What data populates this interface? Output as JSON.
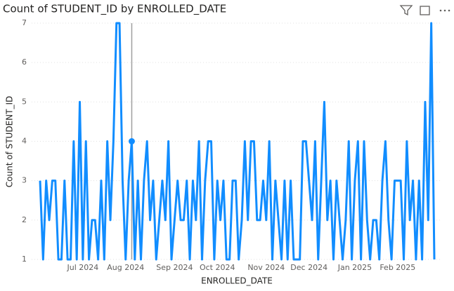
{
  "chart_data": {
    "type": "line",
    "title": "Count of STUDENT_ID by ENROLLED_DATE",
    "x_label": "ENROLLED_DATE",
    "y_label": "Count of STUDENT_ID",
    "categories": [
      null,
      null,
      null,
      null,
      null,
      null,
      null,
      null,
      null,
      null,
      null,
      null,
      null,
      null,
      "Jul 2024",
      null,
      null,
      null,
      null,
      null,
      null,
      null,
      null,
      null,
      null,
      null,
      null,
      null,
      "Aug 2024",
      null,
      null,
      null,
      null,
      null,
      null,
      null,
      null,
      null,
      null,
      null,
      null,
      null,
      null,
      null,
      "Sep 2024",
      null,
      null,
      null,
      null,
      null,
      null,
      null,
      null,
      null,
      null,
      null,
      null,
      null,
      "Oct 2024",
      null,
      null,
      null,
      null,
      null,
      null,
      null,
      null,
      null,
      null,
      null,
      null,
      null,
      null,
      null,
      "Nov 2024",
      null,
      null,
      null,
      null,
      null,
      null,
      null,
      null,
      null,
      null,
      null,
      null,
      null,
      "Dec 2024",
      null,
      null,
      null,
      null,
      null,
      null,
      null,
      null,
      null,
      null,
      null,
      null,
      null,
      null,
      "Jan 2025",
      null,
      null,
      null,
      null,
      null,
      null,
      null,
      null,
      null,
      null,
      null,
      null,
      null,
      "Feb 2025",
      null,
      null,
      null,
      null,
      null,
      null,
      null,
      null,
      null,
      null,
      null,
      null
    ],
    "series": [
      {
        "name": "Count of STUDENT_ID",
        "color": "#118DFF",
        "values": [
          3,
          1,
          3,
          2,
          3,
          3,
          1,
          1,
          3,
          1,
          1,
          4,
          1,
          5,
          1,
          4,
          1,
          2,
          2,
          1,
          3,
          1,
          4,
          2,
          4,
          7,
          7,
          3,
          1,
          3,
          4,
          1,
          3,
          1,
          3,
          4,
          2,
          3,
          1,
          2,
          3,
          2,
          4,
          1,
          2,
          3,
          2,
          2,
          3,
          1,
          3,
          2,
          4,
          1,
          3,
          4,
          4,
          1,
          3,
          2,
          3,
          1,
          1,
          3,
          3,
          1,
          2,
          4,
          2,
          4,
          4,
          2,
          2,
          3,
          2,
          4,
          1,
          3,
          2,
          1,
          3,
          1,
          3,
          1,
          1,
          1,
          4,
          4,
          3,
          2,
          4,
          1,
          3,
          5,
          2,
          3,
          1,
          3,
          2,
          1,
          2,
          4,
          1,
          3,
          4,
          1,
          4,
          2,
          1,
          2,
          2,
          1,
          3,
          4,
          2,
          1,
          3,
          3,
          3,
          1,
          4,
          2,
          3,
          1,
          3,
          1,
          5,
          2,
          7,
          1
        ]
      }
    ],
    "ylim": [
      1,
      7
    ],
    "yticks": [
      1,
      2,
      3,
      4,
      5,
      6,
      7
    ],
    "grid": true
  }
}
